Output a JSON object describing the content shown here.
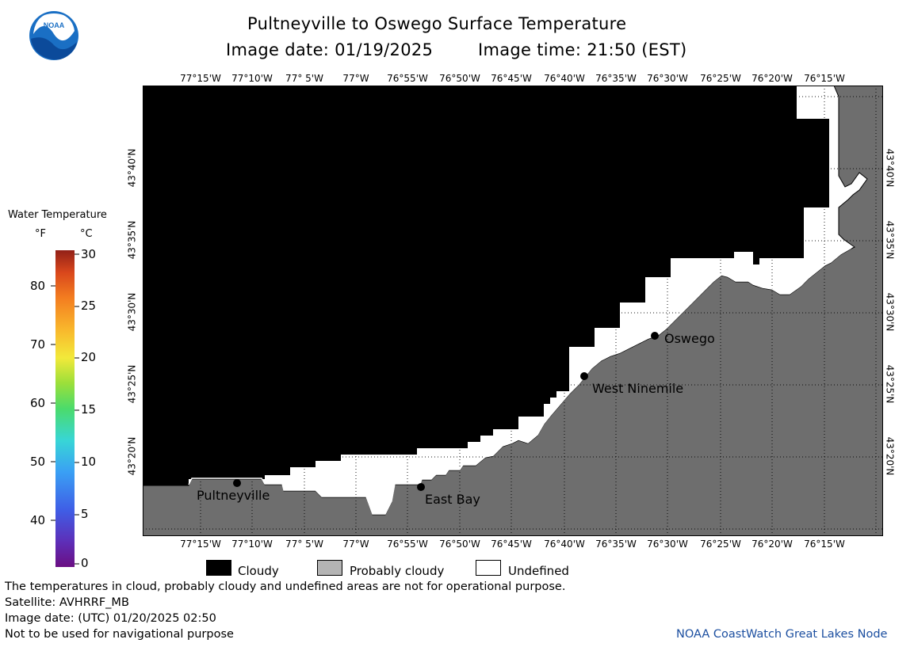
{
  "header": {
    "title": "Pultneyville to Oswego Surface Temperature",
    "image_date_label": "Image date: 01/19/2025",
    "image_time_label": "Image time: 21:50 (EST)"
  },
  "logo": {
    "text": "NOAA"
  },
  "map": {
    "longitude_labels": [
      "77°15'W",
      "77°10'W",
      "77° 5'W",
      "77°W",
      "76°55'W",
      "76°50'W",
      "76°45'W",
      "76°40'W",
      "76°35'W",
      "76°30'W",
      "76°25'W",
      "76°20'W",
      "76°15'W"
    ],
    "latitude_labels": [
      "43°40'N",
      "43°35'N",
      "43°30'N",
      "43°25'N",
      "43°20'N"
    ],
    "cities": [
      {
        "name": "Pultneyville"
      },
      {
        "name": "East Bay"
      },
      {
        "name": "West Ninemile"
      },
      {
        "name": "Oswego"
      }
    ],
    "colors": {
      "cloudy": "#000000",
      "land": "#6e6e6e",
      "undefined": "#ffffff"
    }
  },
  "legend": {
    "title": "Water Temperature",
    "unit_f": "°F",
    "unit_c": "°C",
    "f_ticks": [
      "80",
      "70",
      "60",
      "50",
      "40"
    ],
    "c_ticks": [
      "30",
      "25",
      "20",
      "15",
      "10",
      "5",
      "0"
    ]
  },
  "key": {
    "cloudy": "Cloudy",
    "probably_cloudy": "Probably cloudy",
    "undefined": "Undefined",
    "colors": {
      "cloudy": "#000000",
      "probably_cloudy": "#b4b4b4",
      "undefined": "#ffffff"
    }
  },
  "footer": {
    "disclaimer": "The temperatures in cloud, probably cloudy and undefined areas are not for operational purpose.",
    "satellite": "Satellite: AVHRRF_MB",
    "image_date_utc": "Image date: (UTC) 01/20/2025  02:50",
    "navigation_warning": "Not to be used for navigational purpose",
    "credit": "NOAA CoastWatch Great Lakes Node"
  }
}
